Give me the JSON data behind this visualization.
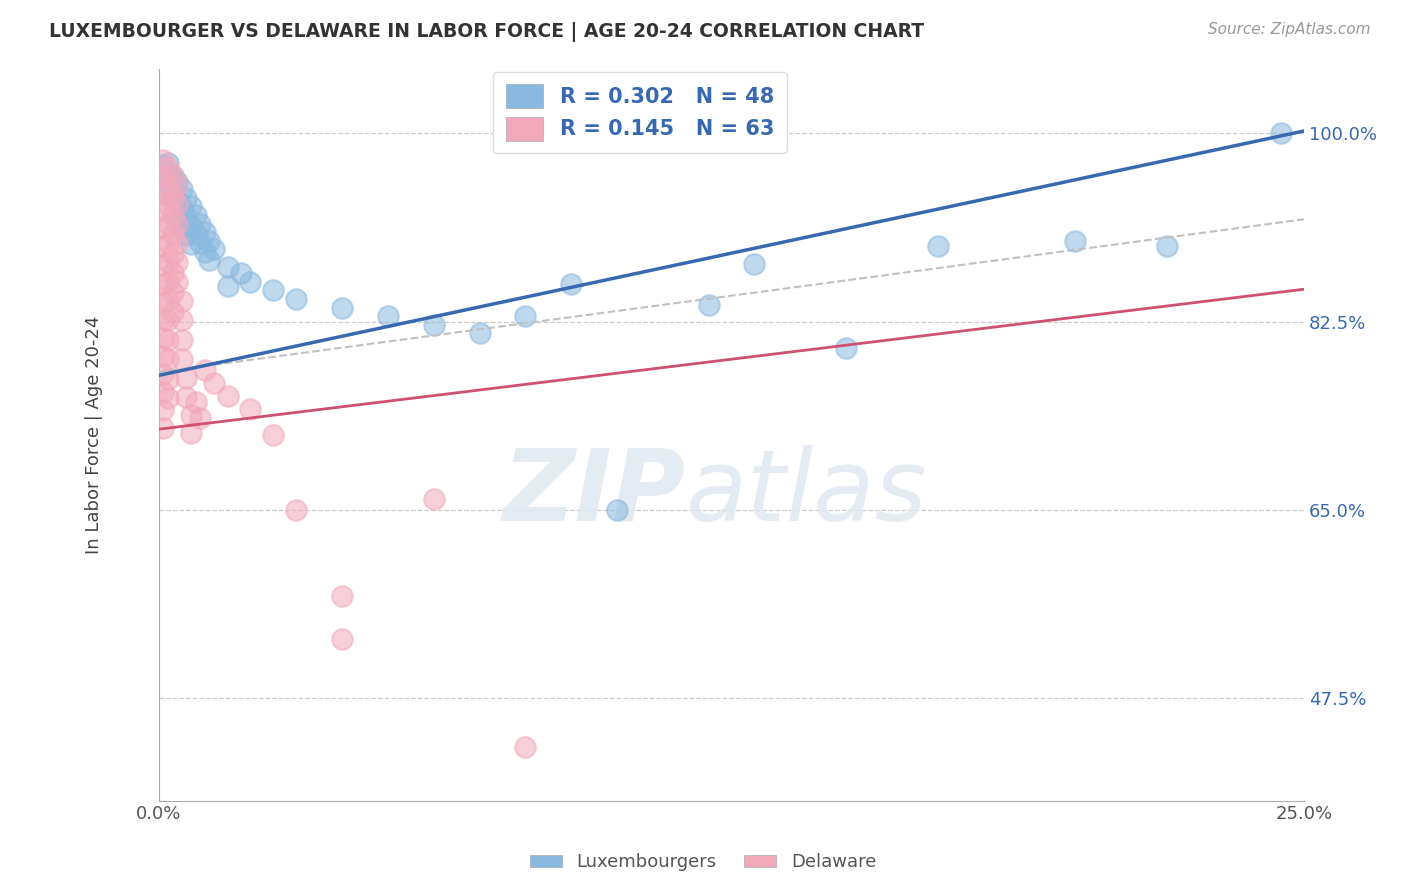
{
  "title": "LUXEMBOURGER VS DELAWARE IN LABOR FORCE | AGE 20-24 CORRELATION CHART",
  "source": "Source: ZipAtlas.com",
  "ylabel": "In Labor Force | Age 20-24",
  "xlim": [
    0.0,
    0.25
  ],
  "ylim": [
    0.38,
    1.06
  ],
  "ytick_values": [
    0.475,
    0.65,
    0.825,
    1.0
  ],
  "ytick_labels": [
    "47.5%",
    "65.0%",
    "82.5%",
    "100.0%"
  ],
  "blue_color": "#89b8e0",
  "pink_color": "#f2a8bb",
  "blue_trend_color": "#3869b0",
  "pink_trend_color": "#d05070",
  "gray_dash_color": "#c0c0c0",
  "legend_text_color": "#3869b0",
  "watermark_zip": "ZIP",
  "watermark_atlas": "atlas",
  "blue_r": 0.302,
  "blue_n": 48,
  "pink_r": 0.145,
  "pink_n": 63,
  "blue_trend_y0": 0.775,
  "blue_trend_y1": 1.002,
  "pink_trend_y0": 0.725,
  "pink_trend_y1": 0.855,
  "gray_trend_y0": 0.778,
  "gray_trend_y1": 0.92,
  "blue_points": [
    [
      0.001,
      0.97
    ],
    [
      0.001,
      0.955
    ],
    [
      0.002,
      0.972
    ],
    [
      0.002,
      0.958
    ],
    [
      0.002,
      0.942
    ],
    [
      0.003,
      0.96
    ],
    [
      0.003,
      0.945
    ],
    [
      0.004,
      0.955
    ],
    [
      0.004,
      0.938
    ],
    [
      0.004,
      0.92
    ],
    [
      0.005,
      0.948
    ],
    [
      0.005,
      0.93
    ],
    [
      0.005,
      0.913
    ],
    [
      0.006,
      0.94
    ],
    [
      0.006,
      0.922
    ],
    [
      0.006,
      0.905
    ],
    [
      0.007,
      0.932
    ],
    [
      0.007,
      0.914
    ],
    [
      0.007,
      0.897
    ],
    [
      0.008,
      0.924
    ],
    [
      0.008,
      0.906
    ],
    [
      0.009,
      0.916
    ],
    [
      0.009,
      0.898
    ],
    [
      0.01,
      0.908
    ],
    [
      0.01,
      0.89
    ],
    [
      0.011,
      0.9
    ],
    [
      0.011,
      0.882
    ],
    [
      0.012,
      0.892
    ],
    [
      0.015,
      0.876
    ],
    [
      0.015,
      0.858
    ],
    [
      0.018,
      0.87
    ],
    [
      0.02,
      0.862
    ],
    [
      0.025,
      0.854
    ],
    [
      0.03,
      0.846
    ],
    [
      0.04,
      0.838
    ],
    [
      0.05,
      0.83
    ],
    [
      0.06,
      0.822
    ],
    [
      0.07,
      0.814
    ],
    [
      0.09,
      0.86
    ],
    [
      0.1,
      0.65
    ],
    [
      0.12,
      0.84
    ],
    [
      0.13,
      0.878
    ],
    [
      0.15,
      0.8
    ],
    [
      0.08,
      0.83
    ],
    [
      0.17,
      0.895
    ],
    [
      0.2,
      0.9
    ],
    [
      0.22,
      0.895
    ],
    [
      0.245,
      1.0
    ]
  ],
  "pink_points": [
    [
      0.001,
      0.975
    ],
    [
      0.001,
      0.96
    ],
    [
      0.001,
      0.945
    ],
    [
      0.001,
      0.928
    ],
    [
      0.001,
      0.912
    ],
    [
      0.001,
      0.895
    ],
    [
      0.001,
      0.878
    ],
    [
      0.001,
      0.86
    ],
    [
      0.001,
      0.843
    ],
    [
      0.001,
      0.826
    ],
    [
      0.001,
      0.81
    ],
    [
      0.001,
      0.793
    ],
    [
      0.001,
      0.776
    ],
    [
      0.001,
      0.76
    ],
    [
      0.001,
      0.743
    ],
    [
      0.001,
      0.726
    ],
    [
      0.002,
      0.968
    ],
    [
      0.002,
      0.95
    ],
    [
      0.002,
      0.933
    ],
    [
      0.002,
      0.916
    ],
    [
      0.002,
      0.898
    ],
    [
      0.002,
      0.88
    ],
    [
      0.002,
      0.862
    ],
    [
      0.002,
      0.844
    ],
    [
      0.002,
      0.826
    ],
    [
      0.002,
      0.808
    ],
    [
      0.002,
      0.79
    ],
    [
      0.002,
      0.772
    ],
    [
      0.002,
      0.754
    ],
    [
      0.003,
      0.96
    ],
    [
      0.003,
      0.942
    ],
    [
      0.003,
      0.924
    ],
    [
      0.003,
      0.906
    ],
    [
      0.003,
      0.888
    ],
    [
      0.003,
      0.87
    ],
    [
      0.003,
      0.852
    ],
    [
      0.003,
      0.834
    ],
    [
      0.004,
      0.952
    ],
    [
      0.004,
      0.934
    ],
    [
      0.004,
      0.916
    ],
    [
      0.004,
      0.898
    ],
    [
      0.004,
      0.88
    ],
    [
      0.004,
      0.862
    ],
    [
      0.005,
      0.844
    ],
    [
      0.005,
      0.826
    ],
    [
      0.005,
      0.808
    ],
    [
      0.005,
      0.79
    ],
    [
      0.006,
      0.773
    ],
    [
      0.006,
      0.755
    ],
    [
      0.007,
      0.738
    ],
    [
      0.007,
      0.721
    ],
    [
      0.008,
      0.75
    ],
    [
      0.009,
      0.735
    ],
    [
      0.01,
      0.78
    ],
    [
      0.012,
      0.768
    ],
    [
      0.015,
      0.756
    ],
    [
      0.02,
      0.744
    ],
    [
      0.025,
      0.72
    ],
    [
      0.03,
      0.65
    ],
    [
      0.04,
      0.57
    ],
    [
      0.04,
      0.53
    ],
    [
      0.06,
      0.66
    ],
    [
      0.08,
      0.43
    ]
  ]
}
